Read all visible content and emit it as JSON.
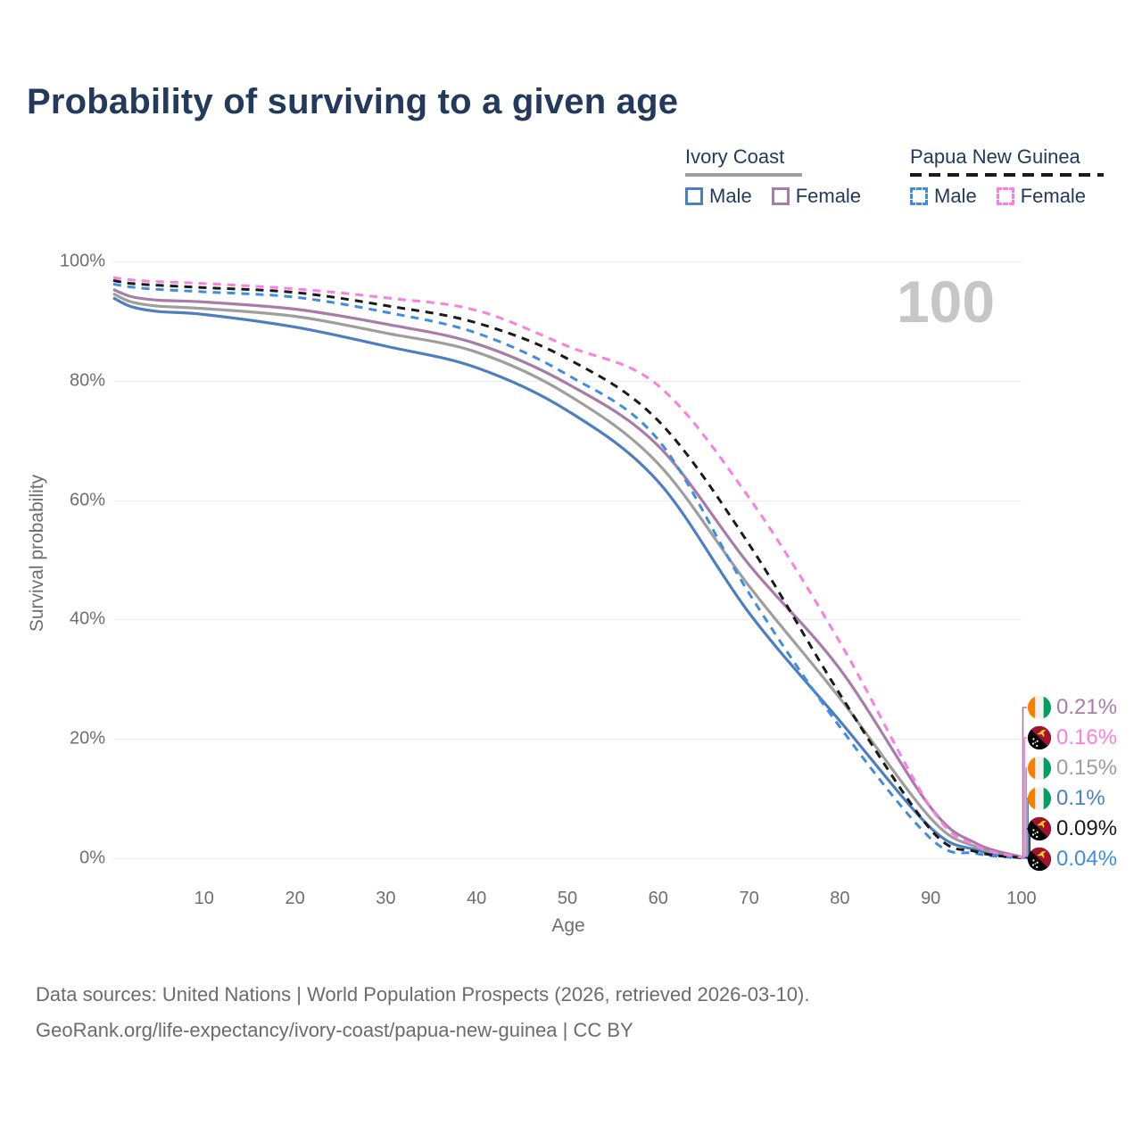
{
  "title": "Probability of surviving to a given age",
  "watermark": "100",
  "legend": {
    "groups": [
      {
        "label": "Ivory Coast",
        "underline_style": "solid",
        "underline_color": "#9e9e9e",
        "items": [
          {
            "label": "Male",
            "color": "#4d7ebf",
            "dashed": false
          },
          {
            "label": "Female",
            "color": "#a87ca8",
            "dashed": false
          }
        ]
      },
      {
        "label": "Papua New Guinea",
        "underline_style": "dashed",
        "underline_color": "#1a1a1a",
        "items": [
          {
            "label": "Male",
            "color": "#3e8de3",
            "dashed": true
          },
          {
            "label": "Female",
            "color": "#fb7ee3",
            "dashed": true
          }
        ]
      }
    ]
  },
  "chart_data": {
    "type": "line",
    "title": "Probability of surviving to a given age",
    "xlabel": "Age",
    "ylabel": "Survival probability",
    "xlim": [
      0,
      100
    ],
    "ylim": [
      0,
      100
    ],
    "grid": "horizontal",
    "x_ticks": [
      10,
      20,
      30,
      40,
      50,
      60,
      70,
      80,
      90,
      100
    ],
    "y_ticks": [
      {
        "value": 0,
        "label": "0%"
      },
      {
        "value": 20,
        "label": "20%"
      },
      {
        "value": 40,
        "label": "40%"
      },
      {
        "value": 60,
        "label": "60%"
      },
      {
        "value": 80,
        "label": "80%"
      },
      {
        "value": 100,
        "label": "100%"
      }
    ],
    "x": [
      0,
      2,
      5,
      10,
      20,
      30,
      40,
      50,
      60,
      70,
      80,
      90,
      95,
      100
    ],
    "series": [
      {
        "name": "Ivory Coast — Male",
        "color": "#4d7ebf",
        "dashed": false,
        "flag": "ci",
        "end_label": "0.1%",
        "end_row": 3,
        "values": [
          93.9,
          92.4,
          91.6,
          91.1,
          89.0,
          85.8,
          82.2,
          75.0,
          63.1,
          41.1,
          23.0,
          5.1,
          1.4,
          0.1
        ]
      },
      {
        "name": "Ivory Coast — Both sexes",
        "color": "#9e9e9e",
        "dashed": false,
        "flag": "ci",
        "end_label": "0.15%",
        "end_row": 2,
        "values": [
          94.6,
          93.2,
          92.5,
          92.1,
          90.8,
          88.0,
          84.8,
          77.7,
          66.1,
          45.6,
          26.8,
          6.7,
          1.9,
          0.15
        ]
      },
      {
        "name": "Ivory Coast — Female",
        "color": "#a87ca8",
        "dashed": false,
        "flag": "ci",
        "end_label": "0.21%",
        "end_row": 0,
        "values": [
          95.3,
          94.1,
          93.5,
          93.2,
          92.0,
          89.5,
          86.2,
          79.5,
          69.1,
          49.2,
          31.7,
          8.5,
          2.5,
          0.21
        ]
      },
      {
        "name": "Papua New Guinea — Male",
        "color": "#3e8de3",
        "dashed": true,
        "flag": "pg",
        "end_label": "0.04%",
        "end_row": 5,
        "values": [
          96.2,
          95.7,
          95.3,
          94.9,
          94.0,
          91.5,
          88.0,
          81.0,
          70.1,
          44.4,
          22.0,
          3.3,
          0.8,
          0.04
        ]
      },
      {
        "name": "Papua New Guinea — Both sexes",
        "color": "#1a1a1a",
        "dashed": true,
        "flag": "pg",
        "end_label": "0.09%",
        "end_row": 4,
        "values": [
          96.8,
          96.3,
          96.0,
          95.6,
          94.8,
          92.6,
          89.7,
          83.7,
          73.3,
          52.6,
          27.5,
          4.8,
          1.1,
          0.09
        ]
      },
      {
        "name": "Papua New Guinea — Female",
        "color": "#fb7ee3",
        "dashed": true,
        "flag": "pg",
        "end_label": "0.16%",
        "end_row": 1,
        "values": [
          97.3,
          96.9,
          96.6,
          96.3,
          95.4,
          93.9,
          91.8,
          85.8,
          79.2,
          60.4,
          36.2,
          8.5,
          2.1,
          0.16
        ]
      }
    ]
  },
  "footer": {
    "line1": "Data sources: United Nations | World Population Prospects (2026, retrieved 2026-03-10).",
    "line2": "GeoRank.org/life-expectancy/ivory-coast/papua-new-guinea | CC BY"
  }
}
